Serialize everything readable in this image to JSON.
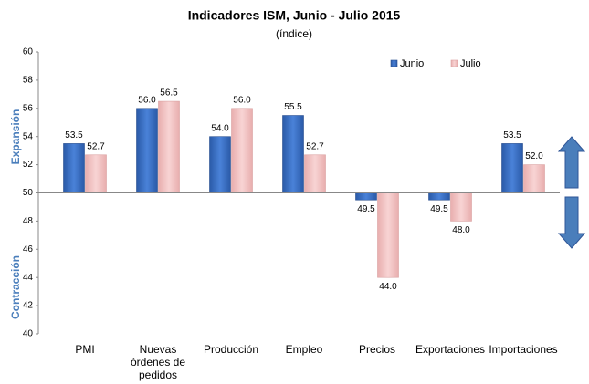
{
  "chart_data": {
    "type": "bar",
    "title": "Indicadores ISM, Junio - Julio 2015",
    "subtitle": "(índice)",
    "annotations": [
      "Expansión",
      "Contracción"
    ],
    "categories": [
      "PMI",
      "Nuevas órdenes de pedidos",
      "Producción",
      "Empleo",
      "Precios",
      "Exportaciones",
      "Importaciones"
    ],
    "series": [
      {
        "name": "Junio",
        "color": "#3a6fc4",
        "values": [
          53.5,
          56.0,
          54.0,
          55.5,
          49.5,
          49.5,
          53.5
        ],
        "value_labels": [
          "53.5",
          "56.0",
          "54.0",
          "55.5",
          "49.5",
          "49.5",
          "53.5"
        ]
      },
      {
        "name": "Julio",
        "color": "#f2c4c4",
        "values": [
          52.7,
          56.5,
          56.0,
          52.7,
          44.0,
          48.0,
          52.0
        ],
        "value_labels": [
          "52.7",
          "56.5",
          "56.0",
          "52.7",
          "44.0",
          "48.0",
          "52.0"
        ]
      }
    ],
    "ylim": [
      40,
      60
    ],
    "yticks": [
      40,
      42,
      44,
      46,
      48,
      50,
      52,
      54,
      56,
      58,
      60
    ],
    "baseline": 50,
    "grid": false,
    "legend": "top-right"
  }
}
